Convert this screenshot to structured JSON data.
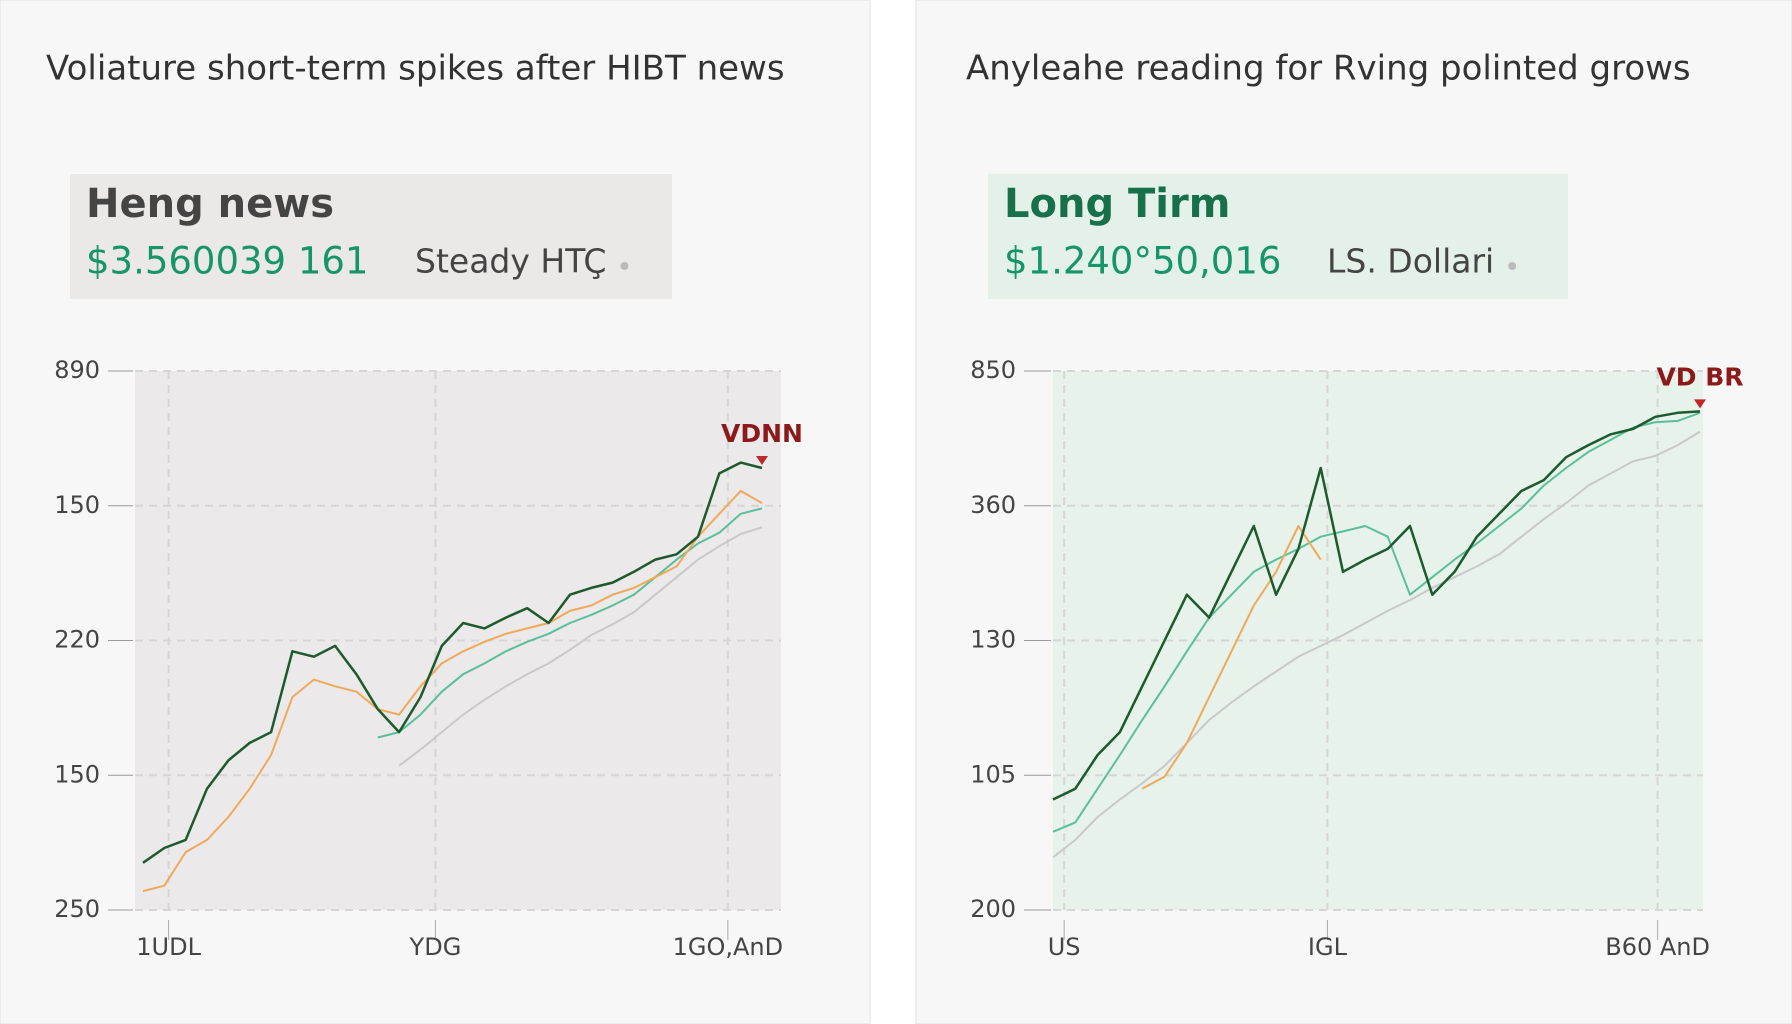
{
  "chart_data": [
    {
      "type": "line",
      "title": "Voliature short-term spikes after HIBT news",
      "header": {
        "title": "Heng news",
        "value": "$3.560039 161",
        "label": "Steady HTÇ"
      },
      "annotation": "VDNN",
      "x": [
        0,
        1,
        2,
        3,
        4,
        5,
        6,
        7,
        8,
        9,
        10,
        11,
        12,
        13,
        14,
        15,
        16,
        17,
        18,
        19,
        20,
        21,
        22,
        23,
        24,
        25,
        26,
        27,
        28,
        29
      ],
      "xlim": [
        0,
        29
      ],
      "xticks": [
        {
          "value": 1.2,
          "label": "1UDL"
        },
        {
          "value": 13.7,
          "label": "YDG"
        },
        {
          "value": 27.4,
          "label": "1GO,AnD"
        }
      ],
      "ylim": [
        0,
        4
      ],
      "yticks": [
        {
          "value": 0,
          "label": "250"
        },
        {
          "value": 1,
          "label": "150"
        },
        {
          "value": 2,
          "label": "220"
        },
        {
          "value": 3,
          "label": "150"
        },
        {
          "value": 4,
          "label": "890"
        }
      ],
      "grid": true,
      "series": [
        {
          "color": "#c9c9c9",
          "values": [
            null,
            null,
            null,
            null,
            null,
            null,
            null,
            null,
            null,
            null,
            null,
            null,
            1.07,
            1.19,
            1.32,
            1.45,
            1.56,
            1.66,
            1.75,
            1.83,
            1.93,
            2.04,
            2.12,
            2.21,
            2.34,
            2.47,
            2.6,
            2.7,
            2.79,
            2.84
          ]
        },
        {
          "color": "#5bbf9a",
          "values": [
            null,
            null,
            null,
            null,
            null,
            null,
            null,
            null,
            null,
            null,
            null,
            1.28,
            1.32,
            1.45,
            1.62,
            1.75,
            1.83,
            1.92,
            1.99,
            2.05,
            2.13,
            2.19,
            2.26,
            2.34,
            2.47,
            2.6,
            2.72,
            2.8,
            2.94,
            2.98
          ]
        },
        {
          "color": "#f0a95a",
          "values": [
            0.14,
            0.18,
            0.43,
            0.52,
            0.69,
            0.9,
            1.15,
            1.58,
            1.71,
            1.66,
            1.62,
            1.49,
            1.45,
            1.66,
            1.83,
            1.92,
            1.99,
            2.05,
            2.09,
            2.13,
            2.22,
            2.26,
            2.34,
            2.39,
            2.47,
            2.55,
            2.77,
            2.94,
            3.11,
            3.02
          ]
        },
        {
          "color": "#1d5a2e",
          "values": [
            0.35,
            0.46,
            0.52,
            0.9,
            1.11,
            1.24,
            1.32,
            1.92,
            1.88,
            1.96,
            1.75,
            1.49,
            1.32,
            1.58,
            1.96,
            2.13,
            2.09,
            2.17,
            2.24,
            2.13,
            2.34,
            2.39,
            2.43,
            2.51,
            2.6,
            2.64,
            2.77,
            3.24,
            3.32,
            3.28
          ]
        }
      ]
    },
    {
      "type": "line",
      "title": "Anyleahe reading for Rving polinted grows",
      "header": {
        "title": "Long Tirm",
        "value": "$1.240°50,016",
        "label": "LS. Dollari"
      },
      "annotation": "VD BR",
      "x": [
        0,
        1,
        2,
        3,
        4,
        5,
        6,
        7,
        8,
        9,
        10,
        11,
        12,
        13,
        14,
        15,
        16,
        17,
        18,
        19,
        20,
        21,
        22,
        23,
        24,
        25,
        26,
        27,
        28,
        29
      ],
      "xlim": [
        0,
        29
      ],
      "xticks": [
        {
          "value": 0.5,
          "label": "US"
        },
        {
          "value": 12.3,
          "label": "IGL"
        },
        {
          "value": 27.1,
          "label": "B60 AnD"
        }
      ],
      "ylim": [
        0,
        4
      ],
      "yticks": [
        {
          "value": 0,
          "label": "200"
        },
        {
          "value": 1,
          "label": "105"
        },
        {
          "value": 2,
          "label": "130"
        },
        {
          "value": 3,
          "label": "360"
        },
        {
          "value": 4,
          "label": "850"
        }
      ],
      "grid": true,
      "series": [
        {
          "color": "#c9c9c9",
          "values": [
            0.39,
            0.52,
            0.69,
            0.82,
            0.94,
            1.07,
            1.24,
            1.41,
            1.54,
            1.66,
            1.77,
            1.88,
            1.96,
            2.04,
            2.13,
            2.22,
            2.3,
            2.39,
            2.47,
            2.55,
            2.64,
            2.77,
            2.9,
            3.02,
            3.15,
            3.24,
            3.33,
            3.37,
            3.45,
            3.55
          ]
        },
        {
          "color": "#5bbf9a",
          "values": [
            0.58,
            0.65,
            0.9,
            1.15,
            1.41,
            1.66,
            1.92,
            2.17,
            2.34,
            2.51,
            2.6,
            2.68,
            2.77,
            2.81,
            2.85,
            2.77,
            2.34,
            2.47,
            2.6,
            2.72,
            2.85,
            2.98,
            3.15,
            3.28,
            3.4,
            3.49,
            3.58,
            3.62,
            3.63,
            3.69
          ]
        },
        {
          "color": "#f0a95a",
          "values": [
            null,
            null,
            null,
            null,
            0.9,
            0.99,
            1.24,
            1.58,
            1.92,
            2.26,
            2.51,
            2.85,
            2.6,
            null,
            null,
            null,
            null,
            null,
            null,
            null,
            null,
            null,
            null,
            null,
            null,
            null,
            null,
            null,
            null,
            null
          ]
        },
        {
          "color": "#1d5a2e",
          "values": [
            0.82,
            0.9,
            1.15,
            1.32,
            1.66,
            2.0,
            2.34,
            2.17,
            2.51,
            2.85,
            2.34,
            2.68,
            3.28,
            2.51,
            2.6,
            2.68,
            2.85,
            2.34,
            2.51,
            2.77,
            2.94,
            3.11,
            3.19,
            3.36,
            3.45,
            3.53,
            3.57,
            3.66,
            3.69,
            3.7
          ]
        }
      ]
    }
  ]
}
